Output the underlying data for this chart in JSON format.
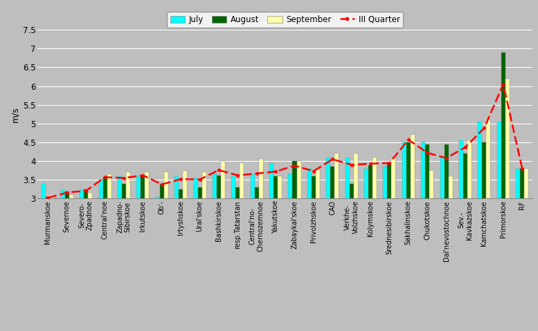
{
  "categories": [
    "Murmanskoe",
    "Severnoe",
    "Severo-\nZpadnoe",
    "Central'noe",
    "Zapadno-\nSibirskoe",
    "Irkutskoe",
    "Ob'-",
    "Irtyshskoe",
    "Ural'skoe",
    "Bashkirskoe",
    "resp.Tatarstan",
    "Central'no-\nChernozemnoe",
    "Yakutskoe",
    "Zabaykal'skoe",
    "Privolzhskoe",
    "CAO",
    "Verkhe-\nVolzhskoe",
    "Kolymskoe",
    "Srednesibirskoe",
    "Sakhalinskoe",
    "Chukotskoe",
    "Dal'nevostochnoe",
    "Sev.-\nKavkazskoe",
    "Kamchatskoe",
    "Primorskoe",
    "RF"
  ],
  "july": [
    3.4,
    3.22,
    3.22,
    3.5,
    3.6,
    3.6,
    3.05,
    3.6,
    3.55,
    3.65,
    3.6,
    3.65,
    3.95,
    3.65,
    3.8,
    4.1,
    4.1,
    3.8,
    3.85,
    4.5,
    4.5,
    4.1,
    4.55,
    5.05,
    5.05,
    3.8
  ],
  "august": [
    3.05,
    3.2,
    3.25,
    3.58,
    3.4,
    3.6,
    3.4,
    3.25,
    3.3,
    3.62,
    3.3,
    3.3,
    3.6,
    4.0,
    3.6,
    3.85,
    3.4,
    3.9,
    3.95,
    4.5,
    4.45,
    4.45,
    4.2,
    4.5,
    6.9,
    3.8
  ],
  "september": [
    3.05,
    3.1,
    3.15,
    3.65,
    3.7,
    3.7,
    3.7,
    3.75,
    3.7,
    4.0,
    3.95,
    4.05,
    3.6,
    4.0,
    3.8,
    4.2,
    4.2,
    4.1,
    4.1,
    4.7,
    3.75,
    3.6,
    4.55,
    5.1,
    6.2,
    3.8
  ],
  "quarter": [
    3.02,
    3.16,
    3.21,
    3.57,
    3.55,
    3.62,
    3.38,
    3.52,
    3.51,
    3.76,
    3.62,
    3.67,
    3.72,
    3.88,
    3.73,
    4.05,
    3.9,
    3.93,
    3.95,
    4.57,
    4.22,
    4.08,
    4.37,
    4.88,
    6.05,
    3.8
  ],
  "july_color": "#00FFFF",
  "august_color": "#006400",
  "september_color": "#FFFFAA",
  "quarter_color": "#FF0000",
  "background_color": "#BEBEBE",
  "fig_background_color": "#BEBEBE",
  "ylabel": "m/s",
  "ylim_min": 3.0,
  "ylim_max": 7.5,
  "yticks": [
    3.0,
    3.5,
    4.0,
    4.5,
    5.0,
    5.5,
    6.0,
    6.5,
    7.0,
    7.5
  ]
}
